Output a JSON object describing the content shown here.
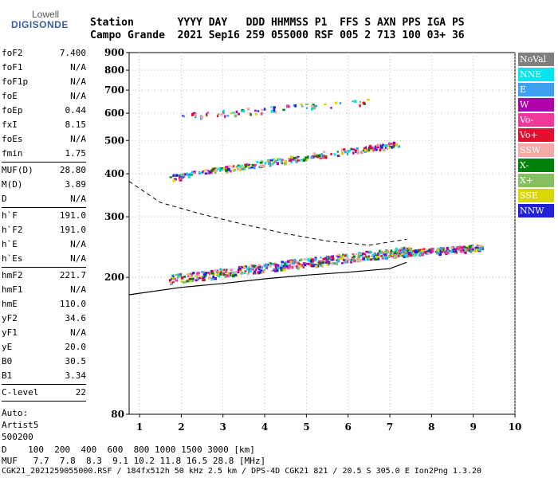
{
  "logo": {
    "line1": "Lowell",
    "line2": "DIGISONDE"
  },
  "header": {
    "row1": "Station       YYYY DAY   DDD HHMMSS P1  FFS S AXN PPS IGA PS",
    "row2": "Campo Grande  2021 Sep16 259 055000 RSF 005 2 713 100 03+ 36"
  },
  "params": {
    "group1": [
      {
        "label": "foF2",
        "value": "7.400"
      },
      {
        "label": "foF1",
        "value": "N/A"
      },
      {
        "label": "foF1p",
        "value": "N/A"
      },
      {
        "label": "foE",
        "value": "N/A"
      },
      {
        "label": "foEp",
        "value": "0.44"
      },
      {
        "label": "fxI",
        "value": "8.15"
      },
      {
        "label": "foEs",
        "value": "N/A"
      },
      {
        "label": "fmin",
        "value": "1.75"
      }
    ],
    "group2": [
      {
        "label": "MUF(D)",
        "value": "28.80"
      },
      {
        "label": "M(D)",
        "value": "3.89"
      },
      {
        "label": "D",
        "value": "N/A"
      }
    ],
    "group3": [
      {
        "label": "h`F",
        "value": "191.0"
      },
      {
        "label": "h`F2",
        "value": "191.0"
      },
      {
        "label": "h`E",
        "value": "N/A"
      },
      {
        "label": "h`Es",
        "value": "N/A"
      }
    ],
    "group4": [
      {
        "label": "hmF2",
        "value": "221.7"
      },
      {
        "label": "hmF1",
        "value": "N/A"
      },
      {
        "label": "hmE",
        "value": "110.0"
      },
      {
        "label": "yF2",
        "value": "34.6"
      },
      {
        "label": "yF1",
        "value": "N/A"
      },
      {
        "label": "yE",
        "value": "20.0"
      },
      {
        "label": "B0",
        "value": "30.5"
      },
      {
        "label": "B1",
        "value": "3.34"
      }
    ],
    "group5": [
      {
        "label": "C-level",
        "value": "22"
      }
    ],
    "auto": [
      "Auto:",
      "Artist5",
      "500200"
    ]
  },
  "footer": {
    "d_row": "D    100  200  400  600  800 1000 1500 3000 [km]",
    "muf_row": "MUF   7.7  7.8  8.3  9.1 10.2 11.8 16.5 28.8 [MHz]",
    "file_row": "CGK21_2021259055000.RSF / 184fx512h 50 kHz 2.5 km / DPS-4D CGK21 821 / 20.5 S 305.0 E Ion2Png 1.3.20"
  },
  "legend": [
    {
      "label": "NoVal",
      "color": "#7f7f7f"
    },
    {
      "label": "NNE",
      "color": "#00e5ee"
    },
    {
      "label": "E",
      "color": "#3ea0f0"
    },
    {
      "label": "W",
      "color": "#b000a8"
    },
    {
      "label": "Vo-",
      "color": "#f0389a"
    },
    {
      "label": "Vo+",
      "color": "#e0102e"
    },
    {
      "label": "SSW",
      "color": "#f4a8a8"
    },
    {
      "label": "X-",
      "color": "#00820a"
    },
    {
      "label": "X+",
      "color": "#86c060"
    },
    {
      "label": "SSE",
      "color": "#d8d800"
    },
    {
      "label": "NNW",
      "color": "#2020d8"
    }
  ],
  "chart_data": {
    "type": "scatter",
    "xlim": [
      0.75,
      10
    ],
    "ylim": [
      80,
      900
    ],
    "y_scale": "log",
    "xticks": [
      1,
      2,
      3,
      4,
      5,
      6,
      7,
      8,
      9,
      10
    ],
    "yticks": [
      80,
      200,
      300,
      400,
      500,
      600,
      700,
      800,
      900
    ],
    "grid": "dotted",
    "traces": [
      {
        "name": "F2 1st hop",
        "x_range": [
          1.7,
          7.5
        ],
        "h_start": 198,
        "h_end": 240,
        "density": "high"
      },
      {
        "name": "F2 2nd hop",
        "x_range": [
          1.7,
          7.2
        ],
        "h_start": 390,
        "h_end": 490,
        "density": "medium"
      },
      {
        "name": "F2 3rd hop",
        "x_range": [
          2.0,
          6.5
        ],
        "h_start": 590,
        "h_end": 650,
        "density": "low"
      },
      {
        "name": "X cusp",
        "x_range": [
          7.0,
          9.2
        ],
        "h_start": 235,
        "h_end": 245,
        "density": "medium"
      }
    ],
    "profile_solid": [
      [
        0.75,
        178
      ],
      [
        2,
        187
      ],
      [
        3,
        192
      ],
      [
        4,
        198
      ],
      [
        5,
        203
      ],
      [
        6,
        207
      ],
      [
        7,
        212
      ],
      [
        7.4,
        221
      ]
    ],
    "profile_dashed": [
      [
        0.75,
        380
      ],
      [
        1.5,
        330
      ],
      [
        2.5,
        305
      ],
      [
        3.5,
        285
      ],
      [
        4.5,
        268
      ],
      [
        5.5,
        255
      ],
      [
        6.5,
        248
      ],
      [
        7.4,
        258
      ]
    ]
  }
}
